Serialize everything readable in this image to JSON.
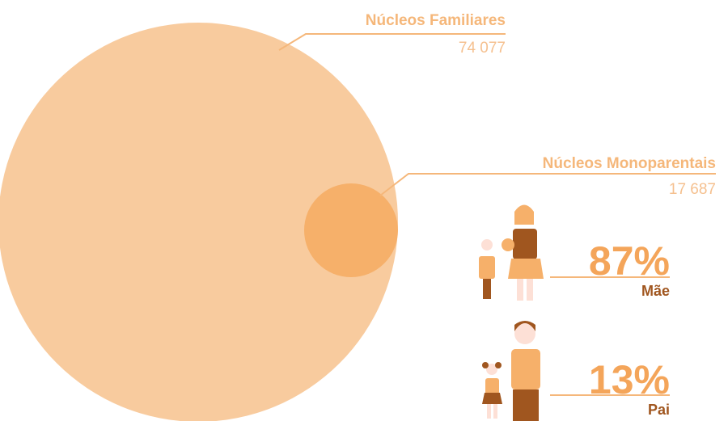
{
  "families": {
    "label": "Núcleos Familiares",
    "value": "74 077"
  },
  "single_parent": {
    "label": "Núcleos Monoparentais",
    "value": "17 687"
  },
  "mother": {
    "percent": "87%",
    "label": "Mãe"
  },
  "father": {
    "percent": "13%",
    "label": "Pai"
  }
}
